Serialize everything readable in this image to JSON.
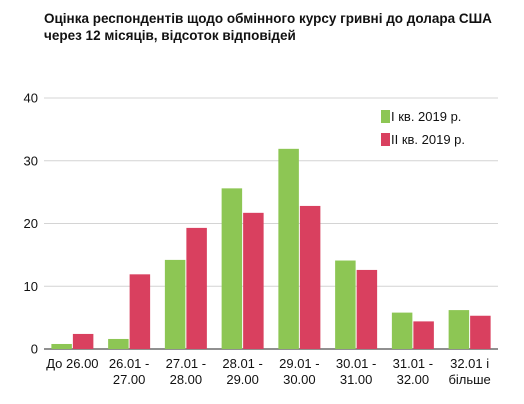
{
  "chart_data": {
    "type": "bar",
    "title": "Оцінка респондентів щодо обмінного курсу гривні до долара США через 12 місяців, відсоток відповідей",
    "categories": [
      [
        "До 26.00"
      ],
      [
        "26.01 -",
        "27.00"
      ],
      [
        "27.01 -",
        "28.00"
      ],
      [
        "28.01 -",
        "29.00"
      ],
      [
        "29.01 -",
        "30.00"
      ],
      [
        "30.01 -",
        "31.00"
      ],
      [
        "31.01 -",
        "32.00"
      ],
      [
        "32.01 і",
        "більше"
      ]
    ],
    "series": [
      {
        "name": "I кв. 2019 р.",
        "values": [
          0.8,
          1.6,
          14.2,
          25.6,
          31.9,
          14.1,
          5.8,
          6.2
        ],
        "color": "#8dc654"
      },
      {
        "name": "II кв. 2019 р.",
        "values": [
          2.4,
          11.9,
          19.3,
          21.7,
          22.8,
          12.6,
          4.4,
          5.3
        ],
        "color": "#d9405f"
      }
    ],
    "ylim": [
      0,
      40
    ],
    "yticks": [
      0,
      10,
      20,
      30,
      40
    ],
    "xlabel": "",
    "ylabel": "",
    "grid": "horizontal",
    "legend_position": "top-right"
  }
}
